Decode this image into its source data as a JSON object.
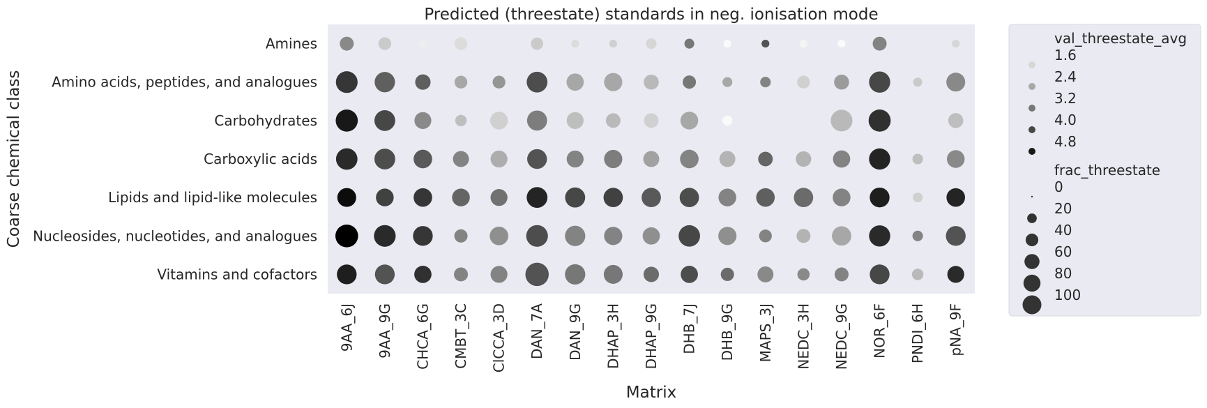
{
  "chart_data": {
    "type": "scatter",
    "title": "Predicted (threestate) standards in neg. ionisation mode",
    "xlabel": "Matrix",
    "ylabel": "Coarse chemical class",
    "x_categories": [
      "9AA_6J",
      "9AA_9G",
      "CHCA_6G",
      "CMBT_3C",
      "ClCCA_3D",
      "DAN_7A",
      "DAN_9G",
      "DHAP_3H",
      "DHAP_9G",
      "DHB_7J",
      "DHB_9G",
      "MAPS_3J",
      "NEDC_3H",
      "NEDC_9G",
      "NOR_6F",
      "PNDI_6H",
      "pNA_9F"
    ],
    "y_categories": [
      "Amines",
      "Amino acids, peptides, and analogues",
      "Carbohydrates",
      "Carboxylic acids",
      "Lipids and lipid-like molecules",
      "Nucleosides, nucleotides, and analogues",
      "Vitamins and cofactors"
    ],
    "color_variable": "val_threestate_avg",
    "size_variable": "frac_threestate",
    "points": [
      {
        "x": "9AA_6J",
        "y": "Amines",
        "val_threestate_avg": 2.9,
        "frac_threestate": 25
      },
      {
        "x": "9AA_9G",
        "y": "Amines",
        "val_threestate_avg": 1.8,
        "frac_threestate": 20
      },
      {
        "x": "CHCA_6G",
        "y": "Amines",
        "val_threestate_avg": 1.2,
        "frac_threestate": 5
      },
      {
        "x": "CMBT_3C",
        "y": "Amines",
        "val_threestate_avg": 1.5,
        "frac_threestate": 20
      },
      {
        "x": "DAN_7A",
        "y": "Amines",
        "val_threestate_avg": 1.8,
        "frac_threestate": 18
      },
      {
        "x": "DAN_9G",
        "y": "Amines",
        "val_threestate_avg": 1.5,
        "frac_threestate": 5
      },
      {
        "x": "DHAP_3H",
        "y": "Amines",
        "val_threestate_avg": 1.7,
        "frac_threestate": 5
      },
      {
        "x": "DHAP_9G",
        "y": "Amines",
        "val_threestate_avg": 1.6,
        "frac_threestate": 12
      },
      {
        "x": "DHB_7J",
        "y": "Amines",
        "val_threestate_avg": 3.2,
        "frac_threestate": 10
      },
      {
        "x": "DHB_9G",
        "y": "Amines",
        "val_threestate_avg": 1.0,
        "frac_threestate": 5
      },
      {
        "x": "MAPS_3J",
        "y": "Amines",
        "val_threestate_avg": 3.8,
        "frac_threestate": 5
      },
      {
        "x": "NEDC_3H",
        "y": "Amines",
        "val_threestate_avg": 1.1,
        "frac_threestate": 5
      },
      {
        "x": "NEDC_9G",
        "y": "Amines",
        "val_threestate_avg": 1.0,
        "frac_threestate": 5
      },
      {
        "x": "NOR_6F",
        "y": "Amines",
        "val_threestate_avg": 3.0,
        "frac_threestate": 25
      },
      {
        "x": "pNA_9F",
        "y": "Amines",
        "val_threestate_avg": 1.6,
        "frac_threestate": 5
      },
      {
        "x": "9AA_6J",
        "y": "Amino acids, peptides, and analogues",
        "val_threestate_avg": 4.3,
        "frac_threestate": 72
      },
      {
        "x": "9AA_9G",
        "y": "Amino acids, peptides, and analogues",
        "val_threestate_avg": 3.6,
        "frac_threestate": 62
      },
      {
        "x": "CHCA_6G",
        "y": "Amino acids, peptides, and analogues",
        "val_threestate_avg": 3.6,
        "frac_threestate": 32
      },
      {
        "x": "CMBT_3C",
        "y": "Amino acids, peptides, and analogues",
        "val_threestate_avg": 2.4,
        "frac_threestate": 20
      },
      {
        "x": "ClCCA_3D",
        "y": "Amino acids, peptides, and analogues",
        "val_threestate_avg": 2.7,
        "frac_threestate": 20
      },
      {
        "x": "DAN_7A",
        "y": "Amino acids, peptides, and analogues",
        "val_threestate_avg": 3.9,
        "frac_threestate": 65
      },
      {
        "x": "DAN_9G",
        "y": "Amino acids, peptides, and analogues",
        "val_threestate_avg": 2.4,
        "frac_threestate": 42
      },
      {
        "x": "DHAP_3H",
        "y": "Amino acids, peptides, and analogues",
        "val_threestate_avg": 2.4,
        "frac_threestate": 48
      },
      {
        "x": "DHAP_9G",
        "y": "Amino acids, peptides, and analogues",
        "val_threestate_avg": 2.1,
        "frac_threestate": 30
      },
      {
        "x": "DHB_7J",
        "y": "Amino acids, peptides, and analogues",
        "val_threestate_avg": 3.2,
        "frac_threestate": 22
      },
      {
        "x": "DHB_9G",
        "y": "Amino acids, peptides, and analogues",
        "val_threestate_avg": 2.4,
        "frac_threestate": 10
      },
      {
        "x": "MAPS_3J",
        "y": "Amino acids, peptides, and analogues",
        "val_threestate_avg": 3.0,
        "frac_threestate": 12
      },
      {
        "x": "NEDC_3H",
        "y": "Amino acids, peptides, and analogues",
        "val_threestate_avg": 1.7,
        "frac_threestate": 20
      },
      {
        "x": "NEDC_9G",
        "y": "Amino acids, peptides, and analogues",
        "val_threestate_avg": 2.6,
        "frac_threestate": 30
      },
      {
        "x": "NOR_6F",
        "y": "Amino acids, peptides, and analogues",
        "val_threestate_avg": 4.0,
        "frac_threestate": 68
      },
      {
        "x": "PNDI_6H",
        "y": "Amino acids, peptides, and analogues",
        "val_threestate_avg": 1.8,
        "frac_threestate": 8
      },
      {
        "x": "pNA_9F",
        "y": "Amino acids, peptides, and analogues",
        "val_threestate_avg": 2.9,
        "frac_threestate": 52
      },
      {
        "x": "9AA_6J",
        "y": "Carbohydrates",
        "val_threestate_avg": 4.8,
        "frac_threestate": 75
      },
      {
        "x": "9AA_9G",
        "y": "Carbohydrates",
        "val_threestate_avg": 4.0,
        "frac_threestate": 65
      },
      {
        "x": "CHCA_6G",
        "y": "Carbohydrates",
        "val_threestate_avg": 2.9,
        "frac_threestate": 40
      },
      {
        "x": "CMBT_3C",
        "y": "Carbohydrates",
        "val_threestate_avg": 2.0,
        "frac_threestate": 15
      },
      {
        "x": "ClCCA_3D",
        "y": "Carbohydrates",
        "val_threestate_avg": 1.7,
        "frac_threestate": 45
      },
      {
        "x": "DAN_7A",
        "y": "Carbohydrates",
        "val_threestate_avg": 3.1,
        "frac_threestate": 60
      },
      {
        "x": "DAN_9G",
        "y": "Carbohydrates",
        "val_threestate_avg": 2.0,
        "frac_threestate": 40
      },
      {
        "x": "DHAP_3H",
        "y": "Carbohydrates",
        "val_threestate_avg": 2.1,
        "frac_threestate": 28
      },
      {
        "x": "DHAP_9G",
        "y": "Carbohydrates",
        "val_threestate_avg": 1.7,
        "frac_threestate": 28
      },
      {
        "x": "DHB_7J",
        "y": "Carbohydrates",
        "val_threestate_avg": 2.4,
        "frac_threestate": 45
      },
      {
        "x": "DHB_9G",
        "y": "Carbohydrates",
        "val_threestate_avg": 1.0,
        "frac_threestate": 10
      },
      {
        "x": "NEDC_9G",
        "y": "Carbohydrates",
        "val_threestate_avg": 2.1,
        "frac_threestate": 72
      },
      {
        "x": "NOR_6F",
        "y": "Carbohydrates",
        "val_threestate_avg": 4.4,
        "frac_threestate": 75
      },
      {
        "x": "pNA_9F",
        "y": "Carbohydrates",
        "val_threestate_avg": 2.0,
        "frac_threestate": 30
      },
      {
        "x": "9AA_6J",
        "y": "Carboxylic acids",
        "val_threestate_avg": 4.5,
        "frac_threestate": 70
      },
      {
        "x": "9AA_9G",
        "y": "Carboxylic acids",
        "val_threestate_avg": 3.9,
        "frac_threestate": 65
      },
      {
        "x": "CHCA_6G",
        "y": "Carboxylic acids",
        "val_threestate_avg": 3.7,
        "frac_threestate": 50
      },
      {
        "x": "CMBT_3C",
        "y": "Carboxylic acids",
        "val_threestate_avg": 3.0,
        "frac_threestate": 35
      },
      {
        "x": "ClCCA_3D",
        "y": "Carboxylic acids",
        "val_threestate_avg": 2.3,
        "frac_threestate": 40
      },
      {
        "x": "DAN_7A",
        "y": "Carboxylic acids",
        "val_threestate_avg": 3.8,
        "frac_threestate": 58
      },
      {
        "x": "DAN_9G",
        "y": "Carboxylic acids",
        "val_threestate_avg": 3.0,
        "frac_threestate": 40
      },
      {
        "x": "DHAP_3H",
        "y": "Carboxylic acids",
        "val_threestate_avg": 3.1,
        "frac_threestate": 48
      },
      {
        "x": "DHAP_9G",
        "y": "Carboxylic acids",
        "val_threestate_avg": 2.5,
        "frac_threestate": 35
      },
      {
        "x": "DHB_7J",
        "y": "Carboxylic acids",
        "val_threestate_avg": 3.0,
        "frac_threestate": 50
      },
      {
        "x": "DHB_9G",
        "y": "Carboxylic acids",
        "val_threestate_avg": 2.2,
        "frac_threestate": 35
      },
      {
        "x": "MAPS_3J",
        "y": "Carboxylic acids",
        "val_threestate_avg": 3.5,
        "frac_threestate": 28
      },
      {
        "x": "NEDC_3H",
        "y": "Carboxylic acids",
        "val_threestate_avg": 2.2,
        "frac_threestate": 32
      },
      {
        "x": "NEDC_9G",
        "y": "Carboxylic acids",
        "val_threestate_avg": 3.0,
        "frac_threestate": 42
      },
      {
        "x": "NOR_6F",
        "y": "Carboxylic acids",
        "val_threestate_avg": 4.6,
        "frac_threestate": 68
      },
      {
        "x": "PNDI_6H",
        "y": "Carboxylic acids",
        "val_threestate_avg": 2.0,
        "frac_threestate": 12
      },
      {
        "x": "pNA_9F",
        "y": "Carboxylic acids",
        "val_threestate_avg": 2.9,
        "frac_threestate": 45
      },
      {
        "x": "9AA_6J",
        "y": "Lipids and lipid-like molecules",
        "val_threestate_avg": 5.0,
        "frac_threestate": 52
      },
      {
        "x": "9AA_9G",
        "y": "Lipids and lipid-like molecules",
        "val_threestate_avg": 4.1,
        "frac_threestate": 45
      },
      {
        "x": "CHCA_6G",
        "y": "Lipids and lipid-like molecules",
        "val_threestate_avg": 4.3,
        "frac_threestate": 50
      },
      {
        "x": "CMBT_3C",
        "y": "Lipids and lipid-like molecules",
        "val_threestate_avg": 3.5,
        "frac_threestate": 45
      },
      {
        "x": "ClCCA_3D",
        "y": "Lipids and lipid-like molecules",
        "val_threestate_avg": 3.3,
        "frac_threestate": 40
      },
      {
        "x": "DAN_7A",
        "y": "Lipids and lipid-like molecules",
        "val_threestate_avg": 4.6,
        "frac_threestate": 65
      },
      {
        "x": "DAN_9G",
        "y": "Lipids and lipid-like molecules",
        "val_threestate_avg": 4.0,
        "frac_threestate": 60
      },
      {
        "x": "DHAP_3H",
        "y": "Lipids and lipid-like molecules",
        "val_threestate_avg": 4.1,
        "frac_threestate": 55
      },
      {
        "x": "DHAP_9G",
        "y": "Lipids and lipid-like molecules",
        "val_threestate_avg": 3.7,
        "frac_threestate": 55
      },
      {
        "x": "DHB_7J",
        "y": "Lipids and lipid-like molecules",
        "val_threestate_avg": 3.9,
        "frac_threestate": 55
      },
      {
        "x": "DHB_9G",
        "y": "Lipids and lipid-like molecules",
        "val_threestate_avg": 3.0,
        "frac_threestate": 45
      },
      {
        "x": "MAPS_3J",
        "y": "Lipids and lipid-like molecules",
        "val_threestate_avg": 3.6,
        "frac_threestate": 50
      },
      {
        "x": "NEDC_3H",
        "y": "Lipids and lipid-like molecules",
        "val_threestate_avg": 3.4,
        "frac_threestate": 55
      },
      {
        "x": "NEDC_9G",
        "y": "Lipids and lipid-like molecules",
        "val_threestate_avg": 3.0,
        "frac_threestate": 45
      },
      {
        "x": "NOR_6F",
        "y": "Lipids and lipid-like molecules",
        "val_threestate_avg": 4.7,
        "frac_threestate": 58
      },
      {
        "x": "PNDI_6H",
        "y": "Lipids and lipid-like molecules",
        "val_threestate_avg": 1.7,
        "frac_threestate": 10
      },
      {
        "x": "pNA_9F",
        "y": "Lipids and lipid-like molecules",
        "val_threestate_avg": 4.6,
        "frac_threestate": 50
      },
      {
        "x": "9AA_6J",
        "y": "Nucleosides, nucleotides, and analogues",
        "val_threestate_avg": 5.2,
        "frac_threestate": 80
      },
      {
        "x": "9AA_9G",
        "y": "Nucleosides, nucleotides, and analogues",
        "val_threestate_avg": 4.5,
        "frac_threestate": 72
      },
      {
        "x": "CHCA_6G",
        "y": "Nucleosides, nucleotides, and analogues",
        "val_threestate_avg": 4.3,
        "frac_threestate": 58
      },
      {
        "x": "CMBT_3C",
        "y": "Nucleosides, nucleotides, and analogues",
        "val_threestate_avg": 3.0,
        "frac_threestate": 22
      },
      {
        "x": "ClCCA_3D",
        "y": "Nucleosides, nucleotides, and analogues",
        "val_threestate_avg": 2.8,
        "frac_threestate": 50
      },
      {
        "x": "DAN_7A",
        "y": "Nucleosides, nucleotides, and analogues",
        "val_threestate_avg": 3.9,
        "frac_threestate": 72
      },
      {
        "x": "DAN_9G",
        "y": "Nucleosides, nucleotides, and analogues",
        "val_threestate_avg": 3.0,
        "frac_threestate": 62
      },
      {
        "x": "DHAP_3H",
        "y": "Nucleosides, nucleotides, and analogues",
        "val_threestate_avg": 3.0,
        "frac_threestate": 48
      },
      {
        "x": "DHAP_9G",
        "y": "Nucleosides, nucleotides, and analogues",
        "val_threestate_avg": 2.8,
        "frac_threestate": 42
      },
      {
        "x": "DHB_7J",
        "y": "Nucleosides, nucleotides, and analogues",
        "val_threestate_avg": 4.0,
        "frac_threestate": 70
      },
      {
        "x": "DHB_9G",
        "y": "Nucleosides, nucleotides, and analogues",
        "val_threestate_avg": 2.8,
        "frac_threestate": 48
      },
      {
        "x": "MAPS_3J",
        "y": "Nucleosides, nucleotides, and analogues",
        "val_threestate_avg": 3.0,
        "frac_threestate": 20
      },
      {
        "x": "NEDC_3H",
        "y": "Nucleosides, nucleotides, and analogues",
        "val_threestate_avg": 2.2,
        "frac_threestate": 25
      },
      {
        "x": "NEDC_9G",
        "y": "Nucleosides, nucleotides, and analogues",
        "val_threestate_avg": 2.4,
        "frac_threestate": 55
      },
      {
        "x": "NOR_6F",
        "y": "Nucleosides, nucleotides, and analogues",
        "val_threestate_avg": 4.5,
        "frac_threestate": 68
      },
      {
        "x": "PNDI_6H",
        "y": "Nucleosides, nucleotides, and analogues",
        "val_threestate_avg": 3.0,
        "frac_threestate": 12
      },
      {
        "x": "pNA_9F",
        "y": "Nucleosides, nucleotides, and analogues",
        "val_threestate_avg": 3.8,
        "frac_threestate": 58
      },
      {
        "x": "9AA_6J",
        "y": "Vitamins and cofactors",
        "val_threestate_avg": 4.7,
        "frac_threestate": 58
      },
      {
        "x": "9AA_9G",
        "y": "Vitamins and cofactors",
        "val_threestate_avg": 3.8,
        "frac_threestate": 58
      },
      {
        "x": "CHCA_6G",
        "y": "Vitamins and cofactors",
        "val_threestate_avg": 4.4,
        "frac_threestate": 42
      },
      {
        "x": "CMBT_3C",
        "y": "Vitamins and cofactors",
        "val_threestate_avg": 3.0,
        "frac_threestate": 25
      },
      {
        "x": "ClCCA_3D",
        "y": "Vitamins and cofactors",
        "val_threestate_avg": 3.0,
        "frac_threestate": 40
      },
      {
        "x": "DAN_7A",
        "y": "Vitamins and cofactors",
        "val_threestate_avg": 3.8,
        "frac_threestate": 85
      },
      {
        "x": "DAN_9G",
        "y": "Vitamins and cofactors",
        "val_threestate_avg": 3.2,
        "frac_threestate": 62
      },
      {
        "x": "DHAP_3H",
        "y": "Vitamins and cofactors",
        "val_threestate_avg": 3.2,
        "frac_threestate": 52
      },
      {
        "x": "DHAP_9G",
        "y": "Vitamins and cofactors",
        "val_threestate_avg": 3.4,
        "frac_threestate": 32
      },
      {
        "x": "DHB_7J",
        "y": "Vitamins and cofactors",
        "val_threestate_avg": 3.9,
        "frac_threestate": 42
      },
      {
        "x": "DHB_9G",
        "y": "Vitamins and cofactors",
        "val_threestate_avg": 3.4,
        "frac_threestate": 22
      },
      {
        "x": "MAPS_3J",
        "y": "Vitamins and cofactors",
        "val_threestate_avg": 2.9,
        "frac_threestate": 35
      },
      {
        "x": "NEDC_3H",
        "y": "Vitamins and cofactors",
        "val_threestate_avg": 2.9,
        "frac_threestate": 18
      },
      {
        "x": "NEDC_9G",
        "y": "Vitamins and cofactors",
        "val_threestate_avg": 3.0,
        "frac_threestate": 25
      },
      {
        "x": "NOR_6F",
        "y": "Vitamins and cofactors",
        "val_threestate_avg": 4.0,
        "frac_threestate": 58
      },
      {
        "x": "PNDI_6H",
        "y": "Vitamins and cofactors",
        "val_threestate_avg": 2.1,
        "frac_threestate": 15
      },
      {
        "x": "pNA_9F",
        "y": "Vitamins and cofactors",
        "val_threestate_avg": 4.5,
        "frac_threestate": 40
      }
    ],
    "color_range": [
      1.0,
      5.2
    ],
    "size_range": [
      0,
      100
    ],
    "legend": {
      "placement": "outside-right",
      "color_title": "val_threestate_avg",
      "color_entries": [
        {
          "label": "1.6",
          "value": 1.6
        },
        {
          "label": "2.4",
          "value": 2.4
        },
        {
          "label": "3.2",
          "value": 3.2
        },
        {
          "label": "4.0",
          "value": 4.0
        },
        {
          "label": "4.8",
          "value": 4.8
        }
      ],
      "size_title": "frac_threestate",
      "size_entries": [
        {
          "label": "0",
          "value": 0
        },
        {
          "label": "20",
          "value": 20
        },
        {
          "label": "40",
          "value": 40
        },
        {
          "label": "60",
          "value": 60
        },
        {
          "label": "80",
          "value": 80
        },
        {
          "label": "100",
          "value": 100
        }
      ]
    },
    "grid": false,
    "background_color": "#eaeaf2",
    "text_color": "#262626"
  }
}
